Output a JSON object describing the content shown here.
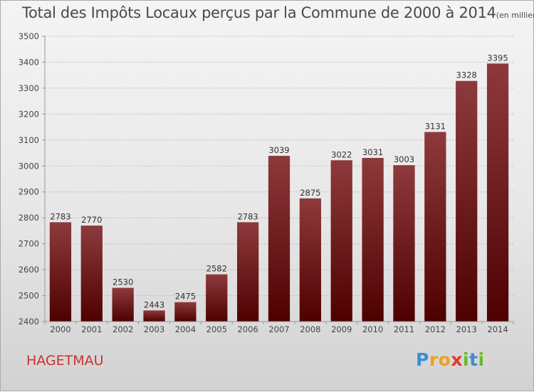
{
  "title": "Total des Impôts Locaux perçus par la Commune de 2000 à 2014",
  "title_unit": "(en milliers d'€)",
  "commune": "HAGETMAU",
  "logo": {
    "text": "Proxiti",
    "letters": [
      {
        "ch": "P",
        "color": "#3a8fd0"
      },
      {
        "ch": "r",
        "color": "#f0a020"
      },
      {
        "ch": "o",
        "color": "#f0a020"
      },
      {
        "ch": "x",
        "color": "#e03a2a"
      },
      {
        "ch": "i",
        "color": "#6bb82a"
      },
      {
        "ch": "t",
        "color": "#3a8fd0"
      },
      {
        "ch": "i",
        "color": "#6bb82a"
      }
    ]
  },
  "chart_data": {
    "type": "bar",
    "title": "Total des Impôts Locaux perçus par la Commune de 2000 à 2014",
    "xlabel": "",
    "ylabel": "",
    "categories": [
      "2000",
      "2001",
      "2002",
      "2003",
      "2004",
      "2005",
      "2006",
      "2007",
      "2008",
      "2009",
      "2010",
      "2011",
      "2012",
      "2013",
      "2014"
    ],
    "values": [
      2783,
      2770,
      2530,
      2443,
      2475,
      2582,
      2783,
      3039,
      2875,
      3022,
      3031,
      3003,
      3131,
      3328,
      3395
    ],
    "ylim": [
      2400,
      3500
    ],
    "yticks": [
      2400,
      2500,
      2600,
      2700,
      2800,
      2900,
      3000,
      3100,
      3200,
      3300,
      3400,
      3500
    ],
    "grid": true,
    "bar_color_top": "#8e3a3d",
    "bar_color_bottom": "#4e0000",
    "legend": "none"
  }
}
